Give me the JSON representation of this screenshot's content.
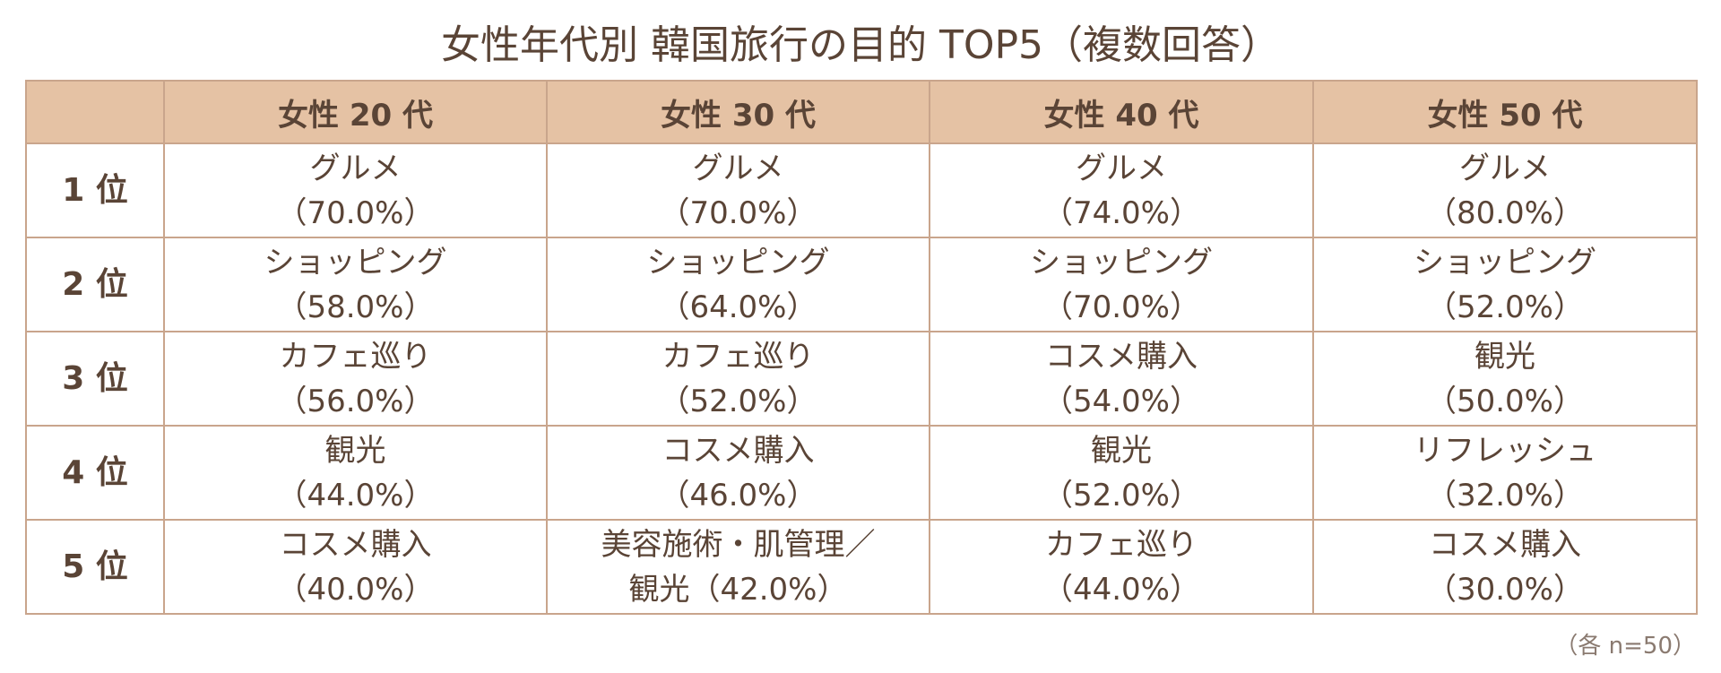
{
  "title": "女性年代別 韓国旅行の目的 TOP5（複数回答）",
  "table": {
    "corner": "",
    "columns": [
      "女性 20 代",
      "女性 30 代",
      "女性 40 代",
      "女性 50 代"
    ],
    "rows": [
      {
        "rank": "1 位",
        "cells": [
          {
            "line1": "グルメ",
            "line2": "（70.0%）"
          },
          {
            "line1": "グルメ",
            "line2": "（70.0%）"
          },
          {
            "line1": "グルメ",
            "line2": "（74.0%）"
          },
          {
            "line1": "グルメ",
            "line2": "（80.0%）"
          }
        ]
      },
      {
        "rank": "2 位",
        "cells": [
          {
            "line1": "ショッピング",
            "line2": "（58.0%）"
          },
          {
            "line1": "ショッピング",
            "line2": "（64.0%）"
          },
          {
            "line1": "ショッピング",
            "line2": "（70.0%）"
          },
          {
            "line1": "ショッピング",
            "line2": "（52.0%）"
          }
        ]
      },
      {
        "rank": "3 位",
        "cells": [
          {
            "line1": "カフェ巡り",
            "line2": "（56.0%）"
          },
          {
            "line1": "カフェ巡り",
            "line2": "（52.0%）"
          },
          {
            "line1": "コスメ購入",
            "line2": "（54.0%）"
          },
          {
            "line1": "観光",
            "line2": "（50.0%）"
          }
        ]
      },
      {
        "rank": "4 位",
        "cells": [
          {
            "line1": "観光",
            "line2": "（44.0%）"
          },
          {
            "line1": "コスメ購入",
            "line2": "（46.0%）"
          },
          {
            "line1": "観光",
            "line2": "（52.0%）"
          },
          {
            "line1": "リフレッシュ",
            "line2": "（32.0%）"
          }
        ]
      },
      {
        "rank": "5 位",
        "cells": [
          {
            "line1": "コスメ購入",
            "line2": "（40.0%）"
          },
          {
            "line1": "美容施術・肌管理／",
            "line2": "観光（42.0%）"
          },
          {
            "line1": "カフェ巡り",
            "line2": "（44.0%）"
          },
          {
            "line1": "コスメ購入",
            "line2": "（30.0%）"
          }
        ]
      }
    ]
  },
  "footnote": "（各 n=50）"
}
